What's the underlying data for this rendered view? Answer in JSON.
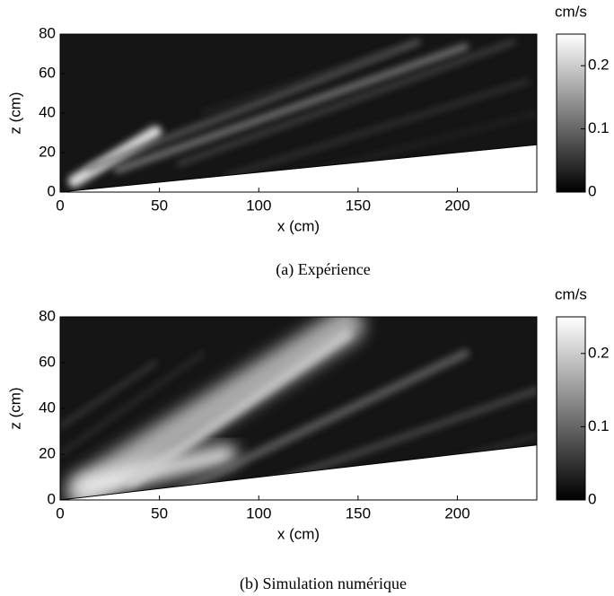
{
  "chart_data": [
    {
      "type": "heatmap",
      "caption": "(a) Expérience",
      "xlabel": "x (cm)",
      "ylabel": "z (cm)",
      "xlim": [
        0,
        240
      ],
      "ylim": [
        0,
        80
      ],
      "xticks": [
        0,
        50,
        100,
        150,
        200
      ],
      "yticks": [
        0,
        20,
        40,
        60,
        80
      ],
      "colorbar": {
        "label": "cm/s",
        "lim": [
          0,
          0.25
        ],
        "ticks": [
          0,
          0.1,
          0.2
        ]
      }
    },
    {
      "type": "heatmap",
      "caption": "(b) Simulation numérique",
      "xlabel": "x (cm)",
      "ylabel": "z (cm)",
      "xlim": [
        0,
        240
      ],
      "ylim": [
        0,
        80
      ],
      "xticks": [
        0,
        50,
        100,
        150,
        200
      ],
      "yticks": [
        0,
        20,
        40,
        60,
        80
      ],
      "colorbar": {
        "label": "cm/s",
        "lim": [
          0,
          0.25
        ],
        "ticks": [
          0,
          0.1,
          0.2
        ]
      }
    }
  ]
}
